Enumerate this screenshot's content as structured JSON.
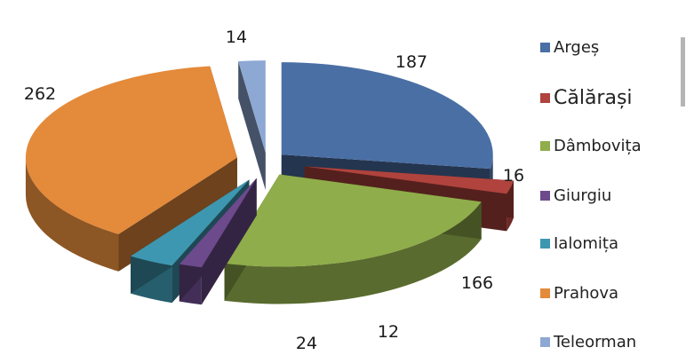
{
  "chart_data": {
    "type": "pie",
    "title": "",
    "three_d": true,
    "exploded": true,
    "data_labels": true,
    "legend_position": "right",
    "categories": [
      "Argeș",
      "Călărași",
      "Dâmbovița",
      "Giurgiu",
      "Ialomița",
      "Prahova",
      "Teleorman"
    ],
    "values": [
      187,
      16,
      166,
      12,
      24,
      262,
      14
    ],
    "labels": [
      "187",
      "16",
      "166",
      "12",
      "24",
      "262",
      "14"
    ],
    "colors": [
      "#4a6fa5",
      "#b0433d",
      "#8fad4a",
      "#6c4a8c",
      "#3e97b0",
      "#e48a3b",
      "#8ea8d4"
    ]
  }
}
